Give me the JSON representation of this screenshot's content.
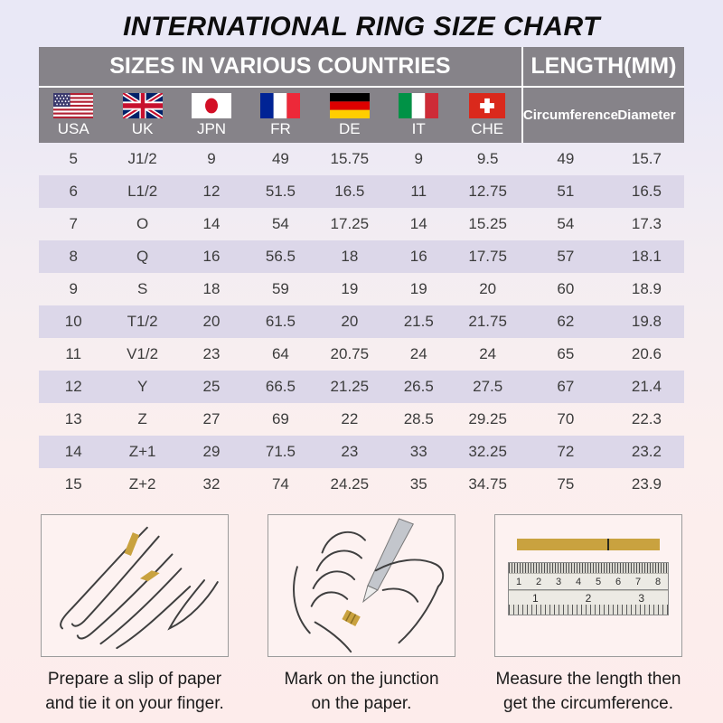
{
  "chart_data": {
    "type": "table",
    "title": "INTERNATIONAL RING SIZE CHART",
    "section_headers": [
      "SIZES IN VARIOUS COUNTRIES",
      "LENGTH(MM)"
    ],
    "columns": [
      "USA",
      "UK",
      "JPN",
      "FR",
      "DE",
      "IT",
      "CHE",
      "Circumference",
      "Diameter"
    ],
    "rows": [
      [
        "5",
        "J1/2",
        "9",
        "49",
        "15.75",
        "9",
        "9.5",
        "49",
        "15.7"
      ],
      [
        "6",
        "L1/2",
        "12",
        "51.5",
        "16.5",
        "11",
        "12.75",
        "51",
        "16.5"
      ],
      [
        "7",
        "O",
        "14",
        "54",
        "17.25",
        "14",
        "15.25",
        "54",
        "17.3"
      ],
      [
        "8",
        "Q",
        "16",
        "56.5",
        "18",
        "16",
        "17.75",
        "57",
        "18.1"
      ],
      [
        "9",
        "S",
        "18",
        "59",
        "19",
        "19",
        "20",
        "60",
        "18.9"
      ],
      [
        "10",
        "T1/2",
        "20",
        "61.5",
        "20",
        "21.5",
        "21.75",
        "62",
        "19.8"
      ],
      [
        "11",
        "V1/2",
        "23",
        "64",
        "20.75",
        "24",
        "24",
        "65",
        "20.6"
      ],
      [
        "12",
        "Y",
        "25",
        "66.5",
        "21.25",
        "26.5",
        "27.5",
        "67",
        "21.4"
      ],
      [
        "13",
        "Z",
        "27",
        "69",
        "22",
        "28.5",
        "29.25",
        "70",
        "22.3"
      ],
      [
        "14",
        "Z+1",
        "29",
        "71.5",
        "23",
        "33",
        "32.25",
        "72",
        "23.2"
      ],
      [
        "15",
        "Z+2",
        "32",
        "74",
        "24.25",
        "35",
        "34.75",
        "75",
        "23.9"
      ]
    ]
  },
  "steps": [
    {
      "caption_line1": "Prepare a slip of paper",
      "caption_line2": "and tie it on your finger."
    },
    {
      "caption_line1": "Mark on the junction",
      "caption_line2": "on the paper."
    },
    {
      "caption_line1": "Measure the length then",
      "caption_line2": "get the circumference.",
      "ruler": {
        "cm_scale": [
          "1",
          "2",
          "3",
          "4",
          "5",
          "6",
          "7",
          "8"
        ],
        "inch_scale": [
          "1",
          "2",
          "3"
        ]
      }
    }
  ],
  "colors": {
    "header_bg": "#868389",
    "row_stripe": "#dcd7e9",
    "background_top": "#e9e8f6",
    "background_bottom": "#fdeceb",
    "paper_gold": "#c9a23f"
  }
}
